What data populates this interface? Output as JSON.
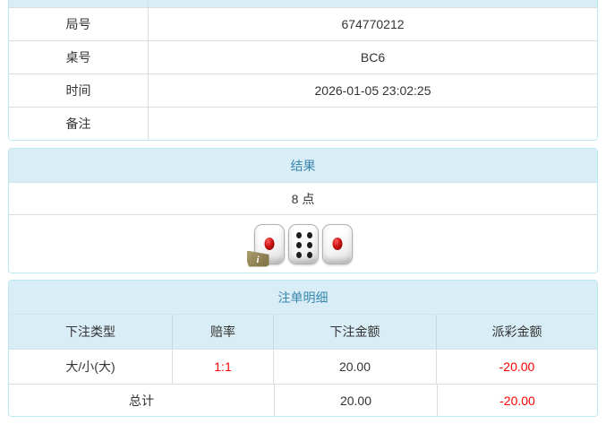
{
  "info_table": {
    "rows": [
      {
        "label": "局号",
        "value": "674770212"
      },
      {
        "label": "桌号",
        "value": "BC6"
      },
      {
        "label": "时间",
        "value": "2026-01-05 23:02:25"
      },
      {
        "label": "备注",
        "value": ""
      }
    ]
  },
  "result_panel": {
    "title": "结果",
    "points": "8 点",
    "dice": [
      1,
      6,
      1
    ],
    "info_icon": "i"
  },
  "bets_panel": {
    "title": "注单明细",
    "columns": [
      "下注类型",
      "赔率",
      "下注金额",
      "派彩金额"
    ],
    "rows": [
      {
        "bet_type": "大/小(大)",
        "odds": "1:1",
        "bet_amount": "20.00",
        "payout": "-20.00"
      }
    ],
    "total": {
      "label": "总计",
      "bet_amount": "20.00",
      "payout": "-20.00"
    }
  },
  "colors": {
    "header_bg": "#d9edf7",
    "panel_border": "#bce8f1",
    "header_text": "#3a87ad",
    "body_text": "#333333",
    "negative_text": "#ff0000",
    "row_divider": "#dddddd"
  }
}
